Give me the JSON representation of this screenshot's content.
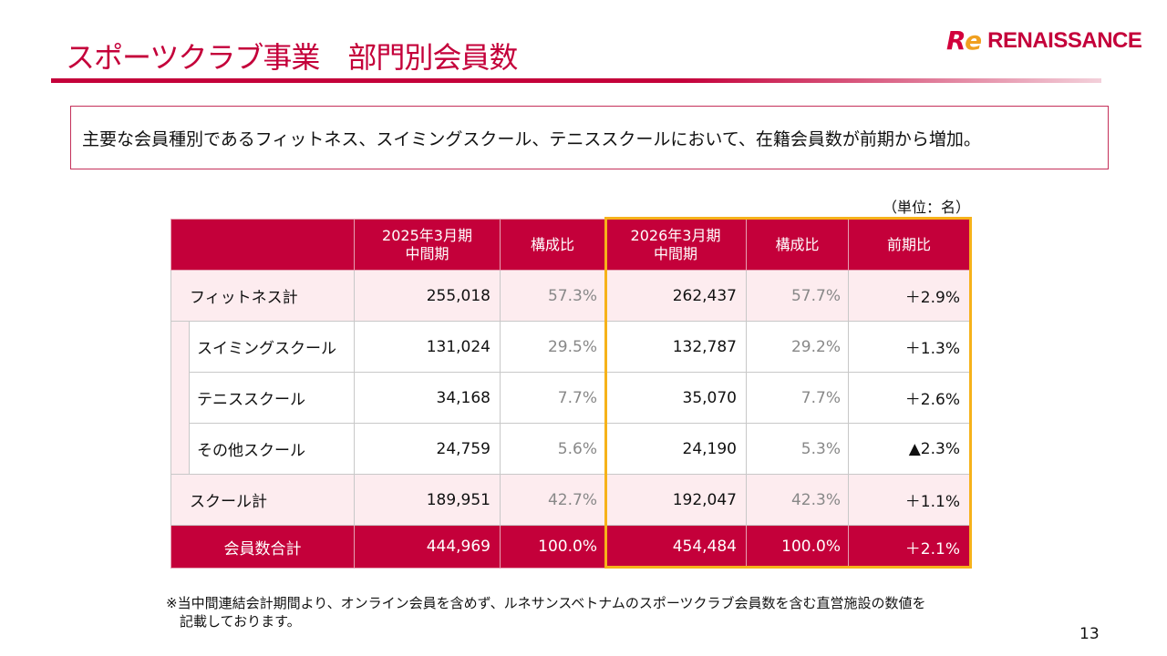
{
  "title": "スポーツクラブ事業　部門別会員数",
  "logo": {
    "text": "RENAISSANCE",
    "mark": "Re"
  },
  "summary": "主要な会員種別であるフィットネス、スイミングスクール、テニススクールにおいて、在籍会員数が前期から増加。",
  "unit": "（単位：名）",
  "table": {
    "headers": [
      "2025年3月期\n中間期",
      "構成比",
      "2026年3月期\n中間期",
      "構成比",
      "前期比"
    ],
    "rows": [
      {
        "label": "フィットネス計",
        "v1": "255,018",
        "r1": "57.3%",
        "v2": "262,437",
        "r2": "57.7%",
        "yoy": "＋2.9%"
      },
      {
        "label": "スイミングスクール",
        "v1": "131,024",
        "r1": "29.5%",
        "v2": "132,787",
        "r2": "29.2%",
        "yoy": "＋1.3%"
      },
      {
        "label": "テニススクール",
        "v1": "34,168",
        "r1": "7.7%",
        "v2": "35,070",
        "r2": "7.7%",
        "yoy": "＋2.6%"
      },
      {
        "label": "その他スクール",
        "v1": "24,759",
        "r1": "5.6%",
        "v2": "24,190",
        "r2": "5.3%",
        "yoy": "▲2.3%"
      },
      {
        "label": "スクール計",
        "v1": "189,951",
        "r1": "42.7%",
        "v2": "192,047",
        "r2": "42.3%",
        "yoy": "＋1.1%"
      },
      {
        "label": "会員数合計",
        "v1": "444,969",
        "r1": "100.0%",
        "v2": "454,484",
        "r2": "100.0%",
        "yoy": "＋2.1%"
      }
    ]
  },
  "note": "※当中間連結会計期間より、オンライン会員を含めず、ルネサンスベトナムのスポーツクラブ会員数を含む直営施設の数値を\n　記載しております。",
  "page": "13",
  "colors": {
    "brand": "#c4003a",
    "highlight": "#f6b21a"
  }
}
